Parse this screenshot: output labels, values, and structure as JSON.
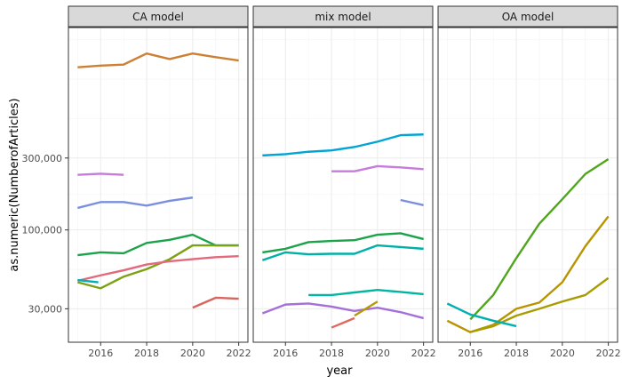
{
  "chart_data": {
    "type": "line",
    "xlabel": "year",
    "ylabel": "as.numeric(NumberofArticles)",
    "x_scale": "linear",
    "y_scale": "log10",
    "xlim": [
      2014.6,
      2022.4
    ],
    "ylim": [
      18000,
      2200000
    ],
    "x_ticks": [
      2016,
      2018,
      2020,
      2022
    ],
    "x_tick_labels": [
      "2016",
      "2018",
      "2020",
      "2022"
    ],
    "y_ticks": [
      30000,
      100000,
      300000
    ],
    "y_tick_labels": [
      "30,000",
      "100,000",
      "300,000"
    ],
    "grid": true,
    "legend": "none",
    "panels": [
      {
        "title": "CA model",
        "series": [
          {
            "color": "#cd8034",
            "points": [
              [
                2015,
                1200000
              ],
              [
                2016,
                1230000
              ],
              [
                2017,
                1250000
              ],
              [
                2018,
                1480000
              ],
              [
                2019,
                1360000
              ],
              [
                2020,
                1480000
              ],
              [
                2021,
                1400000
              ],
              [
                2022,
                1330000
              ]
            ]
          },
          {
            "color": "#c77cdb",
            "points": [
              [
                2015,
                232000
              ],
              [
                2016,
                236000
              ],
              [
                2017,
                232000
              ]
            ]
          },
          {
            "color": "#7b8fdf",
            "points": [
              [
                2015,
                140000
              ],
              [
                2016,
                153000
              ],
              [
                2017,
                153000
              ],
              [
                2018,
                145000
              ],
              [
                2019,
                156000
              ],
              [
                2020,
                164000
              ]
            ]
          },
          {
            "color": "#1aa34a",
            "points": [
              [
                2015,
                68000
              ],
              [
                2016,
                71000
              ],
              [
                2017,
                70000
              ],
              [
                2018,
                82000
              ],
              [
                2019,
                86000
              ],
              [
                2020,
                93000
              ],
              [
                2021,
                79000
              ],
              [
                2022,
                79000
              ]
            ]
          },
          {
            "color": "#7ba114",
            "points": [
              [
                2015,
                45000
              ],
              [
                2016,
                41000
              ],
              [
                2017,
                49000
              ],
              [
                2018,
                55000
              ],
              [
                2019,
                64000
              ],
              [
                2020,
                79000
              ],
              [
                2021,
                79000
              ],
              [
                2022,
                79000
              ]
            ]
          },
          {
            "color": "#e26a7c",
            "points": [
              [
                2015,
                46000
              ],
              [
                2016,
                50000
              ],
              [
                2017,
                54000
              ],
              [
                2018,
                59000
              ],
              [
                2019,
                62000
              ],
              [
                2020,
                64000
              ],
              [
                2021,
                66000
              ],
              [
                2022,
                67000
              ]
            ]
          },
          {
            "color": "#00aeb3",
            "points": [
              [
                2015,
                46500
              ],
              [
                2015.9,
                45000
              ]
            ]
          },
          {
            "color": "#d9655e",
            "points": [
              [
                2020,
                30500
              ],
              [
                2021,
                35500
              ],
              [
                2022,
                35000
              ]
            ]
          }
        ]
      },
      {
        "title": "mix model",
        "series": [
          {
            "color": "#00a5d6",
            "points": [
              [
                2015,
                312000
              ],
              [
                2016,
                318000
              ],
              [
                2017,
                330000
              ],
              [
                2018,
                337000
              ],
              [
                2019,
                355000
              ],
              [
                2020,
                385000
              ],
              [
                2021,
                425000
              ],
              [
                2022,
                430000
              ]
            ]
          },
          {
            "color": "#c77cdb",
            "points": [
              [
                2018,
                245000
              ],
              [
                2019,
                245000
              ],
              [
                2020,
                265000
              ],
              [
                2021,
                260000
              ],
              [
                2022,
                253000
              ]
            ]
          },
          {
            "color": "#7b8fdf",
            "points": [
              [
                2021,
                158000
              ],
              [
                2022,
                146000
              ]
            ]
          },
          {
            "color": "#1aa34a",
            "points": [
              [
                2015,
                71000
              ],
              [
                2016,
                75000
              ],
              [
                2017,
                83000
              ],
              [
                2018,
                84500
              ],
              [
                2019,
                85500
              ],
              [
                2020,
                93000
              ],
              [
                2021,
                95000
              ],
              [
                2022,
                87000
              ]
            ]
          },
          {
            "color": "#00b0a8",
            "points": [
              [
                2015,
                63000
              ],
              [
                2016,
                71000
              ],
              [
                2017,
                69000
              ],
              [
                2018,
                69500
              ],
              [
                2019,
                69500
              ],
              [
                2020,
                79000
              ],
              [
                2021,
                77000
              ],
              [
                2022,
                75000
              ]
            ]
          },
          {
            "color": "#00b6a0",
            "points": [
              [
                2017,
                37000
              ],
              [
                2018,
                37000
              ],
              [
                2019,
                38500
              ],
              [
                2020,
                40000
              ],
              [
                2021,
                38800
              ],
              [
                2022,
                37500
              ]
            ]
          },
          {
            "color": "#a56fd9",
            "points": [
              [
                2015,
                28000
              ],
              [
                2016,
                32000
              ],
              [
                2017,
                32500
              ],
              [
                2018,
                31000
              ],
              [
                2019,
                29000
              ],
              [
                2020,
                30500
              ],
              [
                2021,
                28500
              ],
              [
                2022,
                26000
              ]
            ]
          },
          {
            "color": "#e0685f",
            "points": [
              [
                2018,
                22500
              ],
              [
                2019,
                26000
              ]
            ]
          },
          {
            "color": "#b59b00",
            "points": [
              [
                2019,
                27000
              ],
              [
                2020,
                33500
              ]
            ]
          }
        ]
      },
      {
        "title": "OA model",
        "series": [
          {
            "color": "#4fa51c",
            "points": [
              [
                2016,
                25500
              ],
              [
                2017,
                37000
              ],
              [
                2018,
                65000
              ],
              [
                2019,
                110000
              ],
              [
                2020,
                160000
              ],
              [
                2021,
                235000
              ],
              [
                2022,
                295000
              ]
            ]
          },
          {
            "color": "#b79400",
            "points": [
              [
                2015,
                25000
              ],
              [
                2016,
                21000
              ],
              [
                2017,
                23500
              ],
              [
                2018,
                30000
              ],
              [
                2019,
                33000
              ],
              [
                2020,
                45000
              ],
              [
                2021,
                78000
              ],
              [
                2022,
                123000
              ]
            ]
          },
          {
            "color": "#a89d00",
            "points": [
              [
                2016,
                21000
              ],
              [
                2017,
                23000
              ],
              [
                2018,
                27000
              ],
              [
                2019,
                30000
              ],
              [
                2020,
                33500
              ],
              [
                2021,
                37000
              ],
              [
                2022,
                48000
              ]
            ]
          },
          {
            "color": "#00afb0",
            "points": [
              [
                2015,
                32500
              ],
              [
                2016,
                27500
              ],
              [
                2017,
                25000
              ],
              [
                2018,
                23000
              ]
            ]
          }
        ]
      }
    ]
  }
}
